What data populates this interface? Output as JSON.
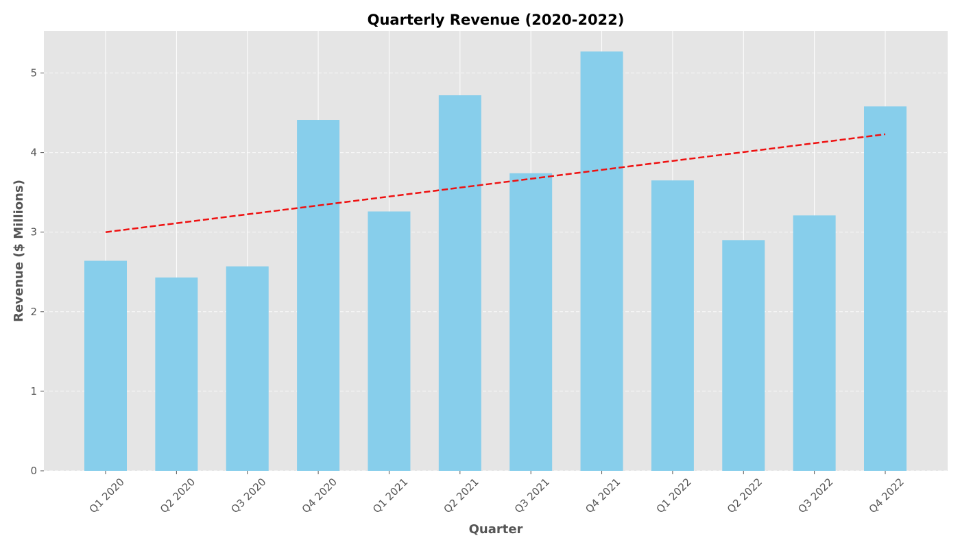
{
  "chart_data": {
    "type": "bar",
    "title": "Quarterly Revenue (2020-2022)",
    "xlabel": "Quarter",
    "ylabel": "Revenue ($ Millions)",
    "categories": [
      "Q1 2020",
      "Q2 2020",
      "Q3 2020",
      "Q4 2020",
      "Q1 2021",
      "Q2 2021",
      "Q3 2021",
      "Q4 2021",
      "Q1 2022",
      "Q2 2022",
      "Q3 2022",
      "Q4 2022"
    ],
    "values": [
      2.64,
      2.43,
      2.57,
      4.41,
      3.26,
      4.72,
      3.74,
      5.27,
      3.65,
      2.9,
      3.21,
      4.58
    ],
    "ylim": [
      0,
      5.53
    ],
    "yticks": [
      0,
      1,
      2,
      3,
      4,
      5
    ],
    "trend": {
      "start": 3.0,
      "end": 4.23,
      "color": "#ee1111",
      "style": "dashed"
    },
    "grid": true,
    "legend": "none",
    "colors": {
      "bar": "#87ceeb",
      "plot_background": "#e5e5e5",
      "grid": "#ffffff",
      "text": "#555555",
      "title": "#000000"
    }
  }
}
